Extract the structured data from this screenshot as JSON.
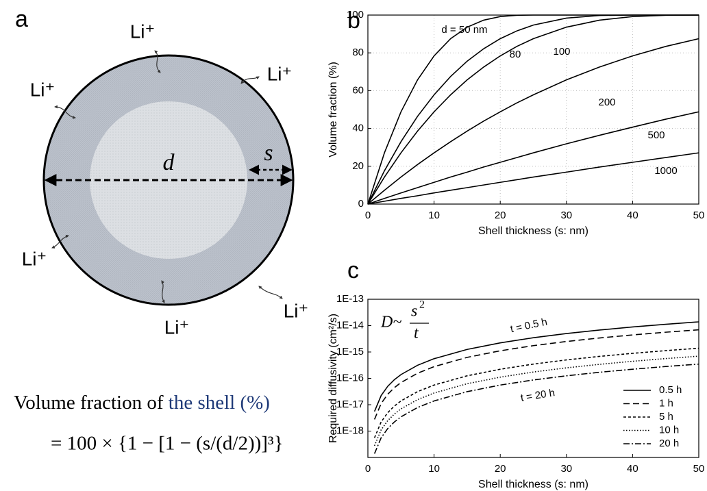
{
  "panel_a": {
    "label": "a",
    "li_labels": [
      "Li⁺",
      "Li⁺",
      "Li⁺",
      "Li⁺",
      "Li⁺",
      "Li⁺"
    ],
    "d": "d",
    "s": "s",
    "caption": "Volume fraction of",
    "caption_highlight": "the shell (%)",
    "formula": "= 100 × {1 − [1 − (s/(d/2))]³}"
  },
  "chart_data": [
    {
      "type": "line",
      "panel_label": "b",
      "x_label": "Shell thickness (s: nm)",
      "y_label": "Volume fraction (%)",
      "x": [
        0,
        2.5,
        5,
        7.5,
        10,
        12.5,
        15,
        17.5,
        20,
        22.5,
        25,
        30,
        35,
        40,
        45,
        50
      ],
      "series": [
        {
          "name": "d = 50 nm",
          "color": "#000000",
          "values": [
            0,
            27.1,
            48.8,
            65.7,
            78.4,
            87.5,
            93.6,
            97.3,
            99.2,
            99.9,
            100,
            100,
            100,
            100,
            100,
            100
          ]
        },
        {
          "name": "80",
          "color": "#000000",
          "values": [
            0,
            17.6,
            33.0,
            46.4,
            57.8,
            67.5,
            75.6,
            82.2,
            87.5,
            91.6,
            94.7,
            98.4,
            99.8,
            100,
            100,
            100
          ]
        },
        {
          "name": "100",
          "color": "#000000",
          "values": [
            0,
            14.3,
            27.1,
            38.6,
            48.8,
            57.8,
            65.7,
            72.5,
            78.4,
            83.4,
            87.5,
            93.6,
            97.3,
            99.2,
            99.9,
            100
          ]
        },
        {
          "name": "200",
          "color": "#000000",
          "values": [
            0,
            7.3,
            14.3,
            20.9,
            27.1,
            33.0,
            38.6,
            43.9,
            48.8,
            53.5,
            57.8,
            65.7,
            72.5,
            78.4,
            83.4,
            87.5
          ]
        },
        {
          "name": "500",
          "color": "#000000",
          "values": [
            0,
            3.0,
            5.9,
            8.7,
            11.5,
            14.3,
            16.9,
            19.6,
            22.1,
            24.6,
            27.1,
            31.9,
            36.4,
            40.7,
            44.9,
            48.8
          ]
        },
        {
          "name": "1000",
          "color": "#000000",
          "values": [
            0,
            1.5,
            3.0,
            4.4,
            5.9,
            7.3,
            8.7,
            10.1,
            11.5,
            12.9,
            14.3,
            16.9,
            19.6,
            22.1,
            24.6,
            27.1
          ]
        }
      ],
      "xlim": [
        0,
        50
      ],
      "xticks": [
        0,
        10,
        20,
        30,
        40,
        50
      ],
      "ylim": [
        0,
        100
      ],
      "yticks": [
        0,
        20,
        40,
        60,
        80,
        100
      ],
      "grid": true
    },
    {
      "type": "line",
      "panel_label": "c",
      "log_y": true,
      "x_label": "Shell thickness (s: nm)",
      "y_label": "Required diffusivity (cm²/s)",
      "formula": {
        "lhs": "D~",
        "num": "s",
        "exp": "2",
        "den": "t"
      },
      "annotations": [
        "t = 0.5 h",
        "t = 20 h"
      ],
      "x": [
        1,
        2,
        3,
        4,
        5,
        7.5,
        10,
        15,
        20,
        25,
        30,
        35,
        40,
        45,
        50
      ],
      "series": [
        {
          "name": "0.5 h",
          "color": "#000000",
          "style": "solid",
          "values": [
            5.56e-18,
            2.22e-17,
            5e-17,
            8.89e-17,
            1.39e-16,
            3.13e-16,
            5.56e-16,
            1.25e-15,
            2.22e-15,
            3.47e-15,
            5e-15,
            6.81e-15,
            8.89e-15,
            1.125e-14,
            1.39e-14
          ]
        },
        {
          "name": "1 h",
          "color": "#000000",
          "style": "dashed",
          "values": [
            2.78e-18,
            1.11e-17,
            2.5e-17,
            4.44e-17,
            6.94e-17,
            1.56e-16,
            2.78e-16,
            6.25e-16,
            1.11e-15,
            1.74e-15,
            2.5e-15,
            3.4e-15,
            4.44e-15,
            5.63e-15,
            6.94e-15
          ]
        },
        {
          "name": "5 h",
          "color": "#000000",
          "style": "short-dashed",
          "values": [
            5.56e-19,
            2.22e-18,
            5e-18,
            8.89e-18,
            1.39e-17,
            3.13e-17,
            5.56e-17,
            1.25e-16,
            2.22e-16,
            3.47e-16,
            5e-16,
            6.81e-16,
            8.89e-16,
            1.125e-15,
            1.39e-15
          ]
        },
        {
          "name": "10 h",
          "color": "#000000",
          "style": "dotted",
          "values": [
            2.78e-19,
            1.11e-18,
            2.5e-18,
            4.44e-18,
            6.94e-18,
            1.56e-17,
            2.78e-17,
            6.25e-17,
            1.11e-16,
            1.74e-16,
            2.5e-16,
            3.4e-16,
            4.44e-16,
            5.63e-16,
            6.94e-16
          ]
        },
        {
          "name": "20 h",
          "color": "#000000",
          "style": "dash-dot",
          "values": [
            1.39e-19,
            5.56e-19,
            1.25e-18,
            2.22e-18,
            3.47e-18,
            7.81e-18,
            1.39e-17,
            3.13e-17,
            5.56e-17,
            8.68e-17,
            1.25e-16,
            1.7e-16,
            2.22e-16,
            2.81e-16,
            3.47e-16
          ]
        }
      ],
      "xlim": [
        0,
        50
      ],
      "xticks": [
        0,
        10,
        20,
        30,
        40,
        50
      ],
      "ylim": [
        1e-19,
        1e-13
      ],
      "yticks": [
        {
          "value": 1e-18,
          "label": "1E-18"
        },
        {
          "value": 1e-17,
          "label": "1E-17"
        },
        {
          "value": 1e-16,
          "label": "1E-16"
        },
        {
          "value": 1e-15,
          "label": "1E-15"
        },
        {
          "value": 1e-14,
          "label": "1E-14"
        },
        {
          "value": 1e-13,
          "label": "1E-13"
        }
      ],
      "grid": false,
      "legend": "lower right"
    }
  ]
}
